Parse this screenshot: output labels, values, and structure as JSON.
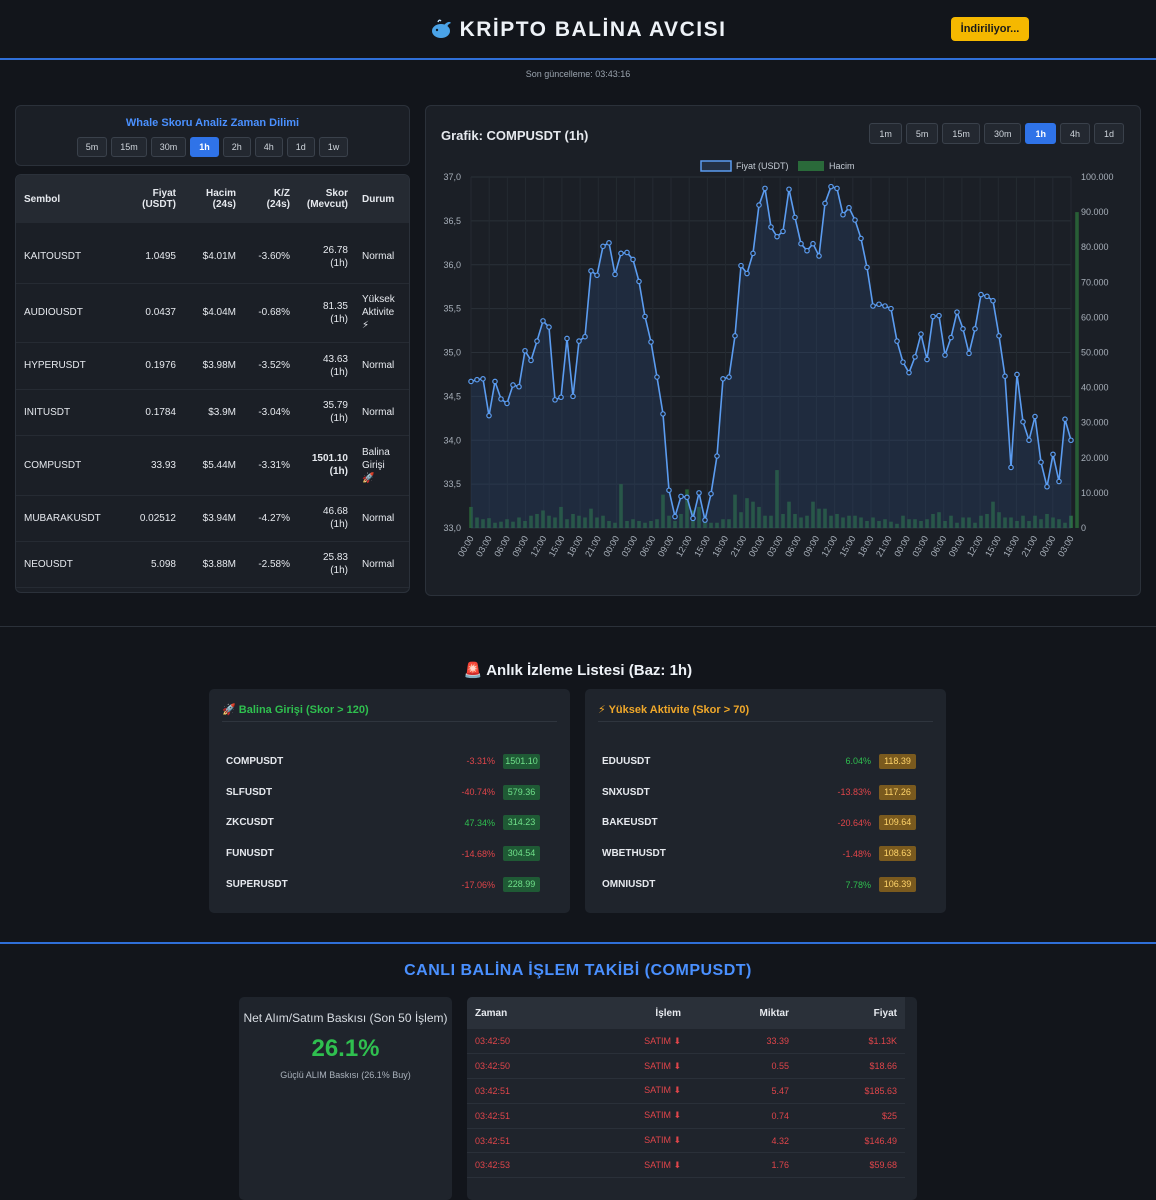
{
  "header": {
    "title": "KRİPTO BALİNA AVCISI",
    "download_label": "İndiriliyor...",
    "last_update": "Son güncelleme: 03:43:16"
  },
  "timeframe_panel": {
    "title": "Whale Skoru Analiz Zaman Dilimi",
    "options": [
      "5m",
      "15m",
      "30m",
      "1h",
      "2h",
      "4h",
      "1d",
      "1w"
    ],
    "selected": "1h"
  },
  "symbol_table": {
    "headers": {
      "symbol": "Sembol",
      "price_1": "Fiyat",
      "price_2": "(USDT)",
      "volume_1": "Hacim",
      "volume_2": "(24s)",
      "pnl_1": "K/Z",
      "pnl_2": "(24s)",
      "score_1": "Skor",
      "score_2": "(Mevcut)",
      "status": "Durum"
    },
    "rows": [
      {
        "symbol": "KAITOUSDT",
        "price": "1.0495",
        "volume": "$4.01M",
        "change": "-3.60%",
        "score": "26.78",
        "score_tf": "(1h)",
        "status_1": "Normal",
        "status_2": "",
        "status_3": ""
      },
      {
        "symbol": "AUDIOUSDT",
        "price": "0.0437",
        "volume": "$4.04M",
        "change": "-0.68%",
        "score": "81.35",
        "score_tf": "(1h)",
        "status_1": "Yüksek",
        "status_2": "Aktivite",
        "status_3": "⚡"
      },
      {
        "symbol": "HYPERUSDT",
        "price": "0.1976",
        "volume": "$3.98M",
        "change": "-3.52%",
        "score": "43.63",
        "score_tf": "(1h)",
        "status_1": "Normal",
        "status_2": "",
        "status_3": ""
      },
      {
        "symbol": "INITUSDT",
        "price": "0.1784",
        "volume": "$3.9M",
        "change": "-3.04%",
        "score": "35.79",
        "score_tf": "(1h)",
        "status_1": "Normal",
        "status_2": "",
        "status_3": ""
      },
      {
        "symbol": "COMPUSDT",
        "price": "33.93",
        "volume": "$5.44M",
        "change": "-3.31%",
        "score": "1501.10",
        "score_tf": "(1h)",
        "status_1": "Balina",
        "status_2": "Girişi",
        "status_3": "🚀"
      },
      {
        "symbol": "MUBARAKUSDT",
        "price": "0.02512",
        "volume": "$3.94M",
        "change": "-4.27%",
        "score": "46.68",
        "score_tf": "(1h)",
        "status_1": "Normal",
        "status_2": "",
        "status_3": ""
      },
      {
        "symbol": "NEOUSDT",
        "price": "5.098",
        "volume": "$3.88M",
        "change": "-2.58%",
        "score": "25.83",
        "score_tf": "(1h)",
        "status_1": "Normal",
        "status_2": "",
        "status_3": ""
      }
    ]
  },
  "chart_panel": {
    "title": "Grafik: COMPUSDT (1h)",
    "options": [
      "1m",
      "5m",
      "15m",
      "30m",
      "1h",
      "4h",
      "1d"
    ],
    "selected": "1h"
  },
  "chart_data": {
    "type": "line",
    "title": "Grafik: COMPUSDT (1h)",
    "legend": [
      "Fiyat (USDT)",
      "Hacim"
    ],
    "legend_position": "top",
    "y_left_ticks": [
      "37,0",
      "36,5",
      "36,0",
      "35,5",
      "35,0",
      "34,5",
      "34,0",
      "33,5",
      "33,0"
    ],
    "y_left_range": [
      33.0,
      37.0
    ],
    "y_right_ticks": [
      "100.000",
      "90.000",
      "80.000",
      "70.000",
      "60.000",
      "50.000",
      "40.000",
      "30.000",
      "20.000",
      "10.000",
      "0"
    ],
    "y_right_range": [
      0,
      100000
    ],
    "x_ticks": [
      "00:00",
      "03:00",
      "06:00",
      "09:00",
      "12:00",
      "15:00",
      "18:00",
      "21:00",
      "00:00",
      "03:00",
      "06:00",
      "09:00",
      "12:00",
      "15:00",
      "18:00",
      "21:00",
      "00:00",
      "03:00",
      "06:00",
      "09:00",
      "12:00",
      "15:00",
      "18:00",
      "21:00",
      "00:00",
      "03:00",
      "06:00",
      "09:00",
      "12:00",
      "15:00",
      "18:00",
      "21:00",
      "00:00",
      "03:00"
    ],
    "series": [
      {
        "name": "Fiyat (USDT)",
        "values": [
          34.67,
          34.69,
          34.7,
          34.28,
          34.67,
          34.47,
          34.42,
          34.63,
          34.61,
          35.02,
          34.91,
          35.13,
          35.36,
          35.29,
          34.46,
          34.49,
          35.16,
          34.5,
          35.13,
          35.18,
          35.93,
          35.88,
          36.21,
          36.25,
          35.89,
          36.13,
          36.14,
          36.06,
          35.81,
          35.41,
          35.12,
          34.72,
          34.3,
          33.43,
          33.13,
          33.36,
          33.35,
          33.11,
          33.4,
          33.09,
          33.39,
          33.82,
          34.7,
          34.72,
          35.19,
          35.99,
          35.9,
          36.13,
          36.68,
          36.87,
          36.43,
          36.32,
          36.38,
          36.86,
          36.54,
          36.24,
          36.16,
          36.24,
          36.1,
          36.7,
          36.89,
          36.87,
          36.57,
          36.65,
          36.51,
          36.3,
          35.97,
          35.53,
          35.55,
          35.53,
          35.5,
          35.13,
          34.89,
          34.77,
          34.95,
          35.21,
          34.92,
          35.41,
          35.42,
          34.97,
          35.17,
          35.46,
          35.27,
          34.99,
          35.27,
          35.66,
          35.64,
          35.59,
          35.19,
          34.73,
          33.69,
          34.75,
          34.21,
          34.0,
          34.27,
          33.75,
          33.47,
          33.84,
          33.53,
          34.24,
          34.0
        ]
      },
      {
        "name": "Hacim",
        "values": [
          6000,
          3000,
          2500,
          2800,
          1500,
          1800,
          2500,
          1800,
          3000,
          2000,
          3500,
          4000,
          5000,
          3500,
          3000,
          6000,
          2500,
          4000,
          3500,
          3000,
          5500,
          3000,
          3500,
          2000,
          1500,
          12500,
          2000,
          2500,
          2000,
          1500,
          2000,
          2500,
          9500,
          3500,
          2000,
          4000,
          11000,
          5000,
          6000,
          3500,
          1500,
          1500,
          2500,
          2500,
          9500,
          4500,
          8500,
          7500,
          6000,
          3500,
          3500,
          16500,
          4000,
          7500,
          4000,
          3000,
          3500,
          7500,
          5500,
          5500,
          3500,
          4000,
          3000,
          3500,
          3500,
          3000,
          2000,
          3000,
          2000,
          2500,
          1800,
          1200,
          3500,
          2500,
          2500,
          2000,
          2500,
          4000,
          4500,
          2000,
          3500,
          1500,
          3000,
          3000,
          1500,
          3500,
          4000,
          7500,
          4500,
          3000,
          3000,
          2000,
          3500,
          2000,
          3500,
          2500,
          4000,
          3000,
          2500,
          1500,
          3500,
          90000
        ]
      }
    ]
  },
  "watchlist": {
    "title": "Anlık İzleme Listesi (Baz: 1h)",
    "whale_title": "Balina Girişi (Skor > 120)",
    "whale_items": [
      {
        "symbol": "COMPUSDT",
        "change": "-3.31%",
        "score": "1501.10"
      },
      {
        "symbol": "SLFUSDT",
        "change": "-40.74%",
        "score": "579.36"
      },
      {
        "symbol": "ZKCUSDT",
        "change": "47.34%",
        "score": "314.23"
      },
      {
        "symbol": "FUNUSDT",
        "change": "-14.68%",
        "score": "304.54"
      },
      {
        "symbol": "SUPERUSDT",
        "change": "-17.06%",
        "score": "228.99"
      }
    ],
    "high_title": "Yüksek Aktivite (Skor > 70)",
    "high_items": [
      {
        "symbol": "EDUUSDT",
        "change": "6.04%",
        "score": "118.39"
      },
      {
        "symbol": "SNXUSDT",
        "change": "-13.83%",
        "score": "117.26"
      },
      {
        "symbol": "BAKEUSDT",
        "change": "-20.64%",
        "score": "109.64"
      },
      {
        "symbol": "WBETHUSDT",
        "change": "-1.48%",
        "score": "108.63"
      },
      {
        "symbol": "OMNIUSDT",
        "change": "7.78%",
        "score": "106.39"
      }
    ]
  },
  "live": {
    "title": "CANLI BALİNA İŞLEM TAKİBİ (COMPUSDT)",
    "pressure_title": "Net Alım/Satım Baskısı (Son 50 İşlem)",
    "pressure_value": "26.1%",
    "pressure_sub": "Güçlü ALIM Baskısı (26.1% Buy)",
    "headers": {
      "time": "Zaman",
      "side": "İşlem",
      "amount": "Miktar",
      "price": "Fiyat"
    },
    "trades": [
      {
        "time": "03:42:50",
        "side": "SATIM ⬇",
        "amount": "33.39",
        "price": "$1.13K"
      },
      {
        "time": "03:42:50",
        "side": "SATIM ⬇",
        "amount": "0.55",
        "price": "$18.66"
      },
      {
        "time": "03:42:51",
        "side": "SATIM ⬇",
        "amount": "5.47",
        "price": "$185.63"
      },
      {
        "time": "03:42:51",
        "side": "SATIM ⬇",
        "amount": "0.74",
        "price": "$25"
      },
      {
        "time": "03:42:51",
        "side": "SATIM ⬇",
        "amount": "4.32",
        "price": "$146.49"
      },
      {
        "time": "03:42:53",
        "side": "SATIM ⬇",
        "amount": "1.76",
        "price": "$59.68"
      }
    ]
  },
  "colors": {
    "accent": "#2f73e8",
    "positive": "#2fbf4f",
    "negative": "#e0454a",
    "warning": "#f0a82a",
    "price_line": "#5b9cf0",
    "volume_bar": "#2a6a3a"
  }
}
